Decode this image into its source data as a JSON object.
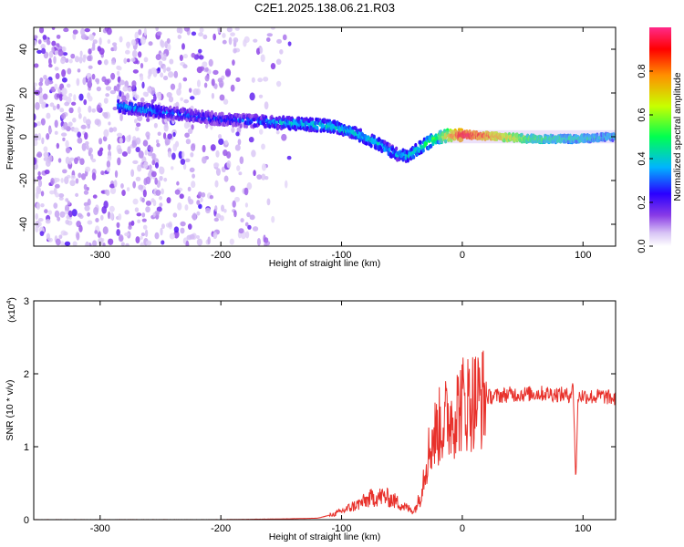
{
  "figure": {
    "title": "C2E1.2025.138.06.21.R03"
  },
  "chart_data": [
    {
      "type": "heatmap",
      "xlabel": "Height of straight line (km)",
      "ylabel": "Frequency (Hz)",
      "xlim": [
        -355,
        127
      ],
      "ylim": [
        -50,
        50
      ],
      "xticks": [
        -300,
        -200,
        -100,
        0,
        100
      ],
      "yticks": [
        -40,
        -20,
        0,
        20,
        40
      ],
      "colorbar": {
        "label": "Normalized spectral amplitude",
        "range": [
          0,
          1
        ],
        "ticks": [
          0.0,
          0.2,
          0.4,
          0.6,
          0.8
        ],
        "tick_labels": [
          "0.0",
          "0.2",
          "0.4",
          "0.6",
          "0.8"
        ],
        "colormap": [
          "#ffffff",
          "#c8a8f0",
          "#7a2ee0",
          "#2a00ff",
          "#00c8ff",
          "#00ff40",
          "#c8ff00",
          "#ff8c00",
          "#ff0000",
          "#ff2a8a"
        ]
      },
      "ridge": {
        "comment_free": true,
        "x": [
          -285,
          -260,
          -230,
          -200,
          -170,
          -140,
          -110,
          -90,
          -70,
          -55,
          -45,
          -35,
          -20,
          0,
          30,
          60,
          90,
          127
        ],
        "y": [
          14,
          12,
          10,
          8,
          7,
          6,
          5,
          2,
          -3,
          -8,
          -9,
          -5,
          0,
          1,
          0,
          -1,
          -1,
          0
        ],
        "amplitude": [
          0.35,
          0.35,
          0.3,
          0.28,
          0.32,
          0.4,
          0.42,
          0.4,
          0.4,
          0.38,
          0.4,
          0.45,
          0.55,
          0.95,
          0.75,
          0.5,
          0.45,
          0.4
        ]
      }
    },
    {
      "type": "line",
      "xlabel": "Height of straight line (km)",
      "ylabel": "SNR (10 * v/v)",
      "y_multiplier_label": "(x10",
      "y_multiplier_exp": "4",
      "y_multiplier_close": ")",
      "xlim": [
        -355,
        127
      ],
      "ylim": [
        0,
        3
      ],
      "xticks": [
        -300,
        -200,
        -100,
        0,
        100
      ],
      "yticks": [
        0,
        1,
        2,
        3
      ],
      "color": "#e8312b",
      "series": [
        {
          "x": [
            -355,
            -300,
            -200,
            -150,
            -120,
            -105,
            -95,
            -85,
            -75,
            -65,
            -55,
            -45,
            -40,
            -35,
            -30,
            -25,
            -20,
            -15,
            -10,
            -5,
            0,
            10,
            20,
            30,
            40,
            50,
            60,
            70,
            80,
            88,
            92,
            94,
            96,
            100,
            110,
            115,
            120,
            127
          ],
          "y": [
            0.0,
            0.0,
            0.0,
            0.01,
            0.02,
            0.08,
            0.15,
            0.22,
            0.3,
            0.32,
            0.25,
            0.15,
            0.12,
            0.3,
            0.8,
            1.1,
            1.25,
            1.35,
            1.4,
            1.5,
            1.6,
            1.65,
            1.68,
            1.7,
            1.72,
            1.72,
            1.73,
            1.73,
            1.72,
            1.7,
            1.8,
            0.5,
            1.7,
            1.7,
            1.68,
            1.7,
            1.68,
            1.65
          ]
        }
      ]
    }
  ]
}
